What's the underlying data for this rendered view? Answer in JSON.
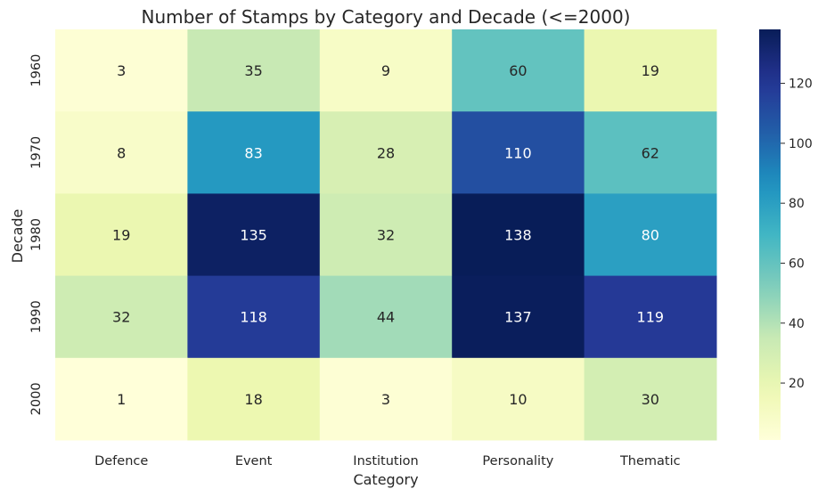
{
  "chart_data": {
    "type": "heatmap",
    "title": "Number of Stamps by Category and Decade (<=2000)",
    "xlabel": "Category",
    "ylabel": "Decade",
    "x_categories": [
      "Defence",
      "Event",
      "Institution",
      "Personality",
      "Thematic"
    ],
    "y_categories": [
      "1960",
      "1970",
      "1980",
      "1990",
      "2000"
    ],
    "values": [
      [
        3,
        35,
        9,
        60,
        19
      ],
      [
        8,
        83,
        28,
        110,
        62
      ],
      [
        19,
        135,
        32,
        138,
        80
      ],
      [
        32,
        118,
        44,
        137,
        119
      ],
      [
        1,
        18,
        3,
        10,
        30
      ]
    ],
    "colormap": "YlGnBu",
    "vmin": 1,
    "vmax": 138,
    "colorbar_ticks": [
      20,
      40,
      60,
      80,
      100,
      120
    ],
    "grid": false
  }
}
